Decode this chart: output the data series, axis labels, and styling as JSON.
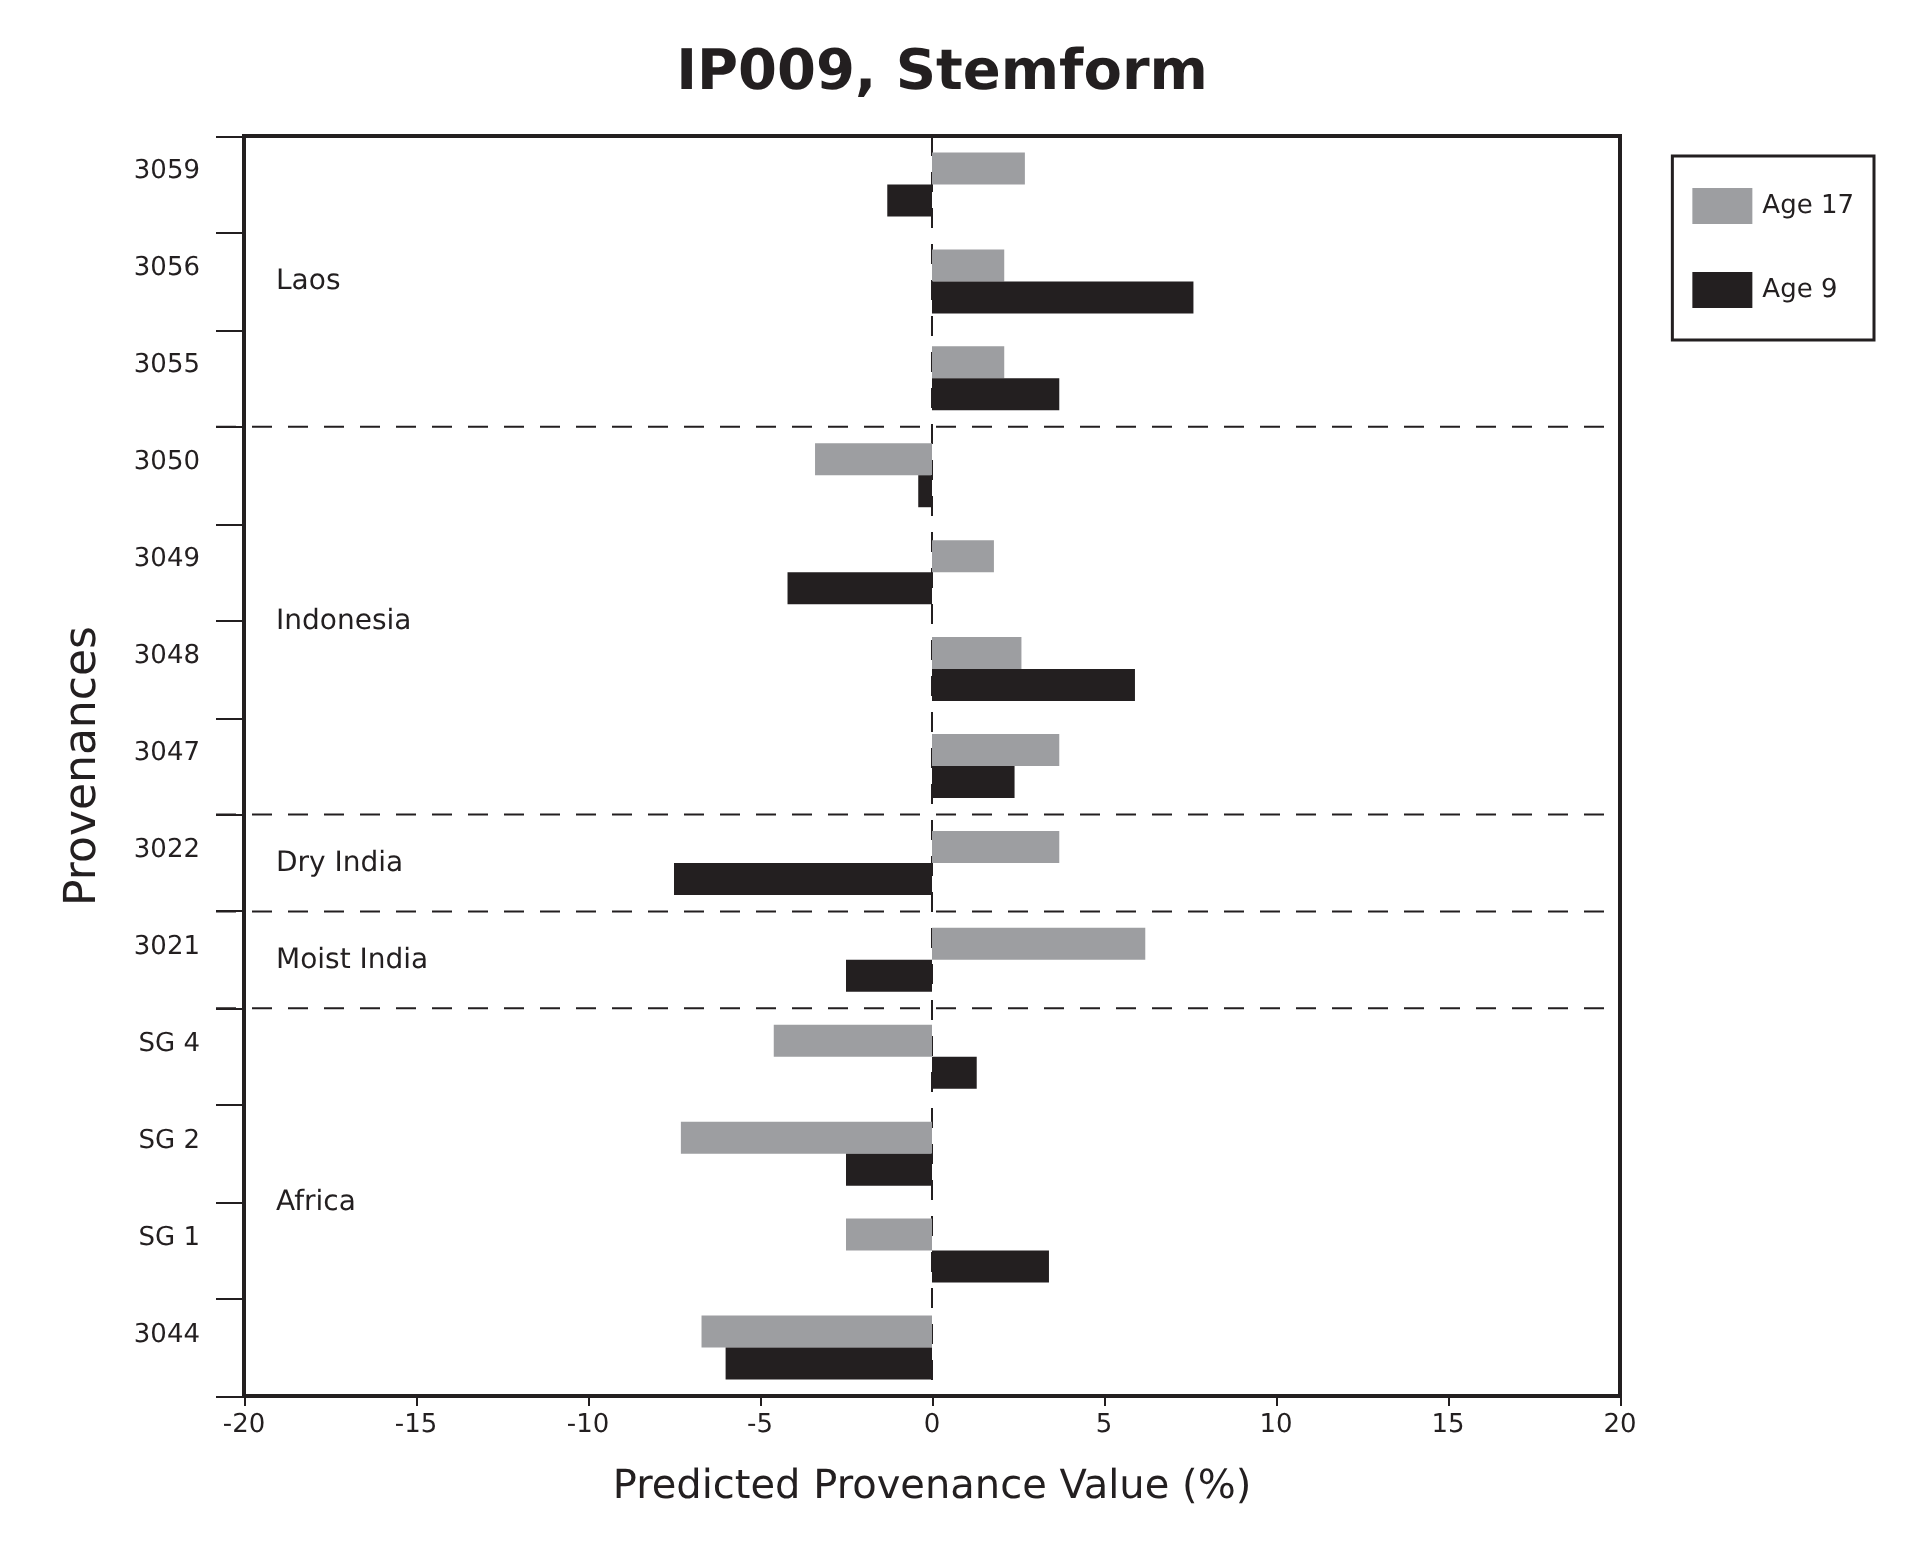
{
  "chart_data": {
    "type": "bar",
    "orientation": "horizontal",
    "title": "IP009, Stemform",
    "xlabel": "Predicted Provenance Value (%)",
    "ylabel": "Provenances",
    "categories": [
      "3059",
      "3056",
      "3055",
      "3050",
      "3049",
      "3048",
      "3047",
      "3022",
      "3021",
      "SG 4",
      "SG 2",
      "SG 1",
      "3044"
    ],
    "series": [
      {
        "name": "Age 17",
        "color": "#9d9ea1",
        "values": [
          2.7,
          2.1,
          2.1,
          -3.4,
          1.8,
          2.6,
          3.7,
          3.7,
          6.2,
          -4.6,
          -7.3,
          -2.5,
          -6.7
        ]
      },
      {
        "name": "Age 9",
        "color": "#231f20",
        "values": [
          -1.3,
          7.6,
          3.7,
          -0.4,
          -4.2,
          5.9,
          2.4,
          -7.5,
          -2.5,
          1.3,
          -2.5,
          3.4,
          -6
        ]
      }
    ],
    "xlim": [
      -20,
      20
    ],
    "xticks": [
      -20,
      -15,
      -10,
      -5,
      0,
      5,
      10,
      15,
      20
    ],
    "grid": false,
    "legend": "top right",
    "ref_lines": [
      {
        "axis": "x",
        "value": 0,
        "line_style": "dashed"
      }
    ],
    "annotations": [
      "Laos",
      "Indonesia",
      "Dry India",
      "Moist India",
      "Africa"
    ]
  }
}
